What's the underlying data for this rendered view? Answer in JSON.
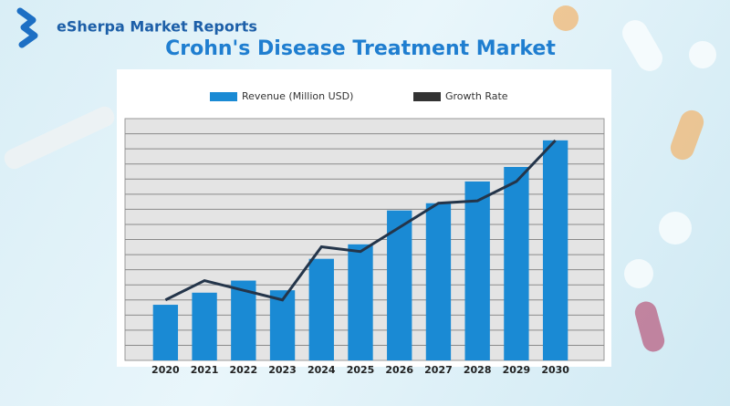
{
  "brand": "eSherpa Market Reports",
  "chart_data": {
    "type": "bar-line",
    "title": "Crohn's Disease Treatment Market",
    "categories": [
      "2020",
      "2021",
      "2022",
      "2023",
      "2024",
      "2025",
      "2026",
      "2027",
      "2028",
      "2029",
      "2030"
    ],
    "series": [
      {
        "name": "Revenue (Million USD)",
        "type": "bar",
        "color": "#1a8ad4",
        "values": [
          23,
          28,
          33,
          29,
          42,
          48,
          62,
          65,
          74,
          80,
          91
        ]
      },
      {
        "name": "Growth Rate",
        "type": "line",
        "axis": "y2",
        "color": "#24354a",
        "values": [
          25,
          33,
          29,
          25,
          47,
          45,
          55,
          65,
          66,
          74,
          91
        ]
      }
    ],
    "ylim": [
      0,
      100
    ],
    "y2lim": [
      0,
      100
    ],
    "grid": true
  }
}
